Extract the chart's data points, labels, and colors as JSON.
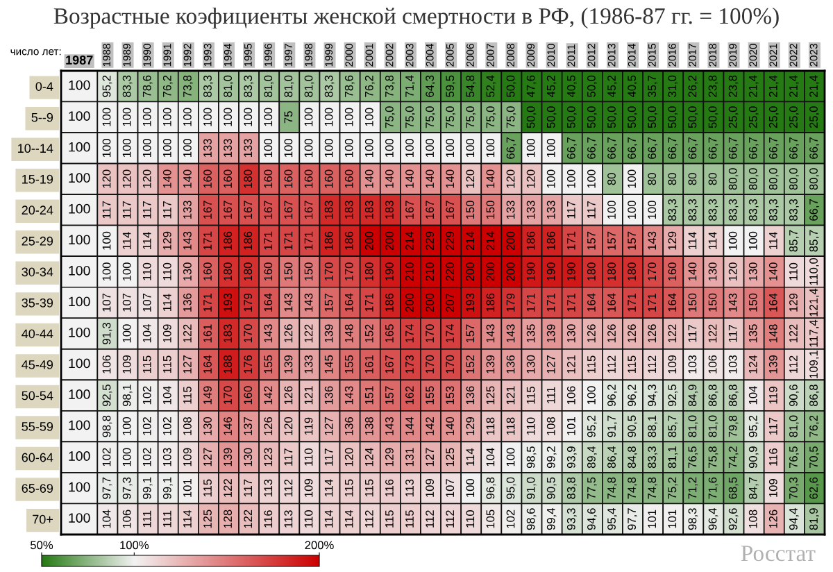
{
  "chart_data": {
    "type": "heatmap",
    "title": "Возрастные коэфициенты женской смертности в РФ, (1986-87 гг. = 100%)",
    "ylabel": "число лет:",
    "annotations": [
      "Росстат"
    ],
    "categories": [
      "1987",
      "1988",
      "1989",
      "1990",
      "1991",
      "1992",
      "1993",
      "1994",
      "1995",
      "1996",
      "1997",
      "1998",
      "1999",
      "2000",
      "2001",
      "2002",
      "2003",
      "2004",
      "2005",
      "2006",
      "2007",
      "2008",
      "2009",
      "2010",
      "2011",
      "2012",
      "2013",
      "2014",
      "2015",
      "2016",
      "2017",
      "2018",
      "2019",
      "2020",
      "2021",
      "2022",
      "2023"
    ],
    "y_categories": [
      "0-4",
      "5--9",
      "10--14",
      "15-19",
      "20-24",
      "25-29",
      "30-34",
      "35-39",
      "40-44",
      "45-49",
      "50-54",
      "55-59",
      "60-64",
      "65-69",
      "70+"
    ],
    "cells": [
      [
        100,
        95.2,
        83.3,
        78.6,
        76.2,
        73.8,
        83.3,
        81.0,
        83.3,
        81.0,
        81.0,
        81.0,
        83.3,
        78.6,
        76.2,
        73.8,
        71.4,
        64.3,
        59.5,
        54.8,
        52.4,
        50.0,
        47.6,
        45.2,
        40.5,
        50.0,
        45.2,
        40.5,
        35.7,
        31.0,
        26.2,
        23.8,
        23.8,
        21.4,
        21.4,
        21.4,
        21.4
      ],
      [
        100,
        100,
        100,
        100,
        100,
        100,
        100,
        100,
        100,
        100,
        75,
        100,
        100,
        100,
        100,
        75.0,
        75.0,
        75.0,
        75.0,
        75.0,
        75.0,
        75.0,
        50.0,
        50.0,
        50.0,
        50.0,
        50.0,
        50.0,
        50.0,
        50.0,
        50.0,
        50.0,
        25.0,
        25.0,
        25.0,
        25.0,
        25.0
      ],
      [
        100,
        100,
        100,
        100,
        100,
        100,
        133,
        133,
        133,
        100,
        100,
        100,
        100,
        100,
        100,
        100,
        100,
        100,
        100,
        100,
        100,
        66.7,
        100,
        100,
        66.7,
        66.7,
        66.7,
        66.7,
        66.7,
        66.7,
        66.7,
        66.7,
        66.7,
        66.7,
        66.7,
        66.7,
        66.7
      ],
      [
        100,
        120,
        120,
        120,
        140,
        140,
        160,
        160,
        180,
        160,
        160,
        160,
        160,
        160,
        140,
        140,
        140,
        140,
        140,
        120,
        140,
        120,
        120,
        100,
        100,
        100,
        80,
        100,
        80,
        80,
        80,
        80,
        80.0,
        80.0,
        80.0,
        80.0,
        80.0
      ],
      [
        100,
        117,
        117,
        117,
        117,
        133,
        167,
        167,
        167,
        167,
        167,
        167,
        183,
        183,
        183,
        183,
        167,
        167,
        167,
        150,
        150,
        133,
        133,
        133,
        117,
        117,
        100,
        100,
        100,
        83.3,
        83.3,
        83.3,
        83.3,
        83.3,
        83.3,
        83.3,
        66.7
      ],
      [
        100,
        100,
        114,
        114,
        129,
        143,
        171,
        186,
        186,
        171,
        171,
        171,
        186,
        186,
        200,
        200,
        214,
        229,
        229,
        214,
        214,
        200,
        186,
        186,
        171,
        157,
        157,
        157,
        143,
        129,
        114,
        114,
        100,
        100,
        114,
        85.7,
        85.7
      ],
      [
        100,
        100,
        100,
        110,
        110,
        130,
        160,
        180,
        180,
        160,
        150,
        150,
        170,
        170,
        180,
        190,
        210,
        210,
        220,
        200,
        200,
        200,
        190,
        190,
        190,
        180,
        180,
        180,
        170,
        160,
        140,
        130,
        120,
        130,
        140,
        110,
        110.0
      ],
      [
        100,
        107,
        107,
        107,
        114,
        136,
        171,
        193,
        179,
        164,
        143,
        143,
        157,
        164,
        171,
        186,
        200,
        200,
        207,
        193,
        186,
        179,
        171,
        171,
        171,
        164,
        164,
        171,
        171,
        164,
        150,
        150,
        143,
        150,
        164,
        129,
        121.4
      ],
      [
        100,
        91.3,
        100,
        104,
        109,
        122,
        161,
        183,
        170,
        143,
        126,
        122,
        139,
        148,
        152,
        165,
        174,
        170,
        174,
        157,
        143,
        143,
        135,
        139,
        130,
        126,
        126,
        126,
        126,
        122,
        117,
        122,
        117,
        135,
        148,
        122,
        117.4
      ],
      [
        100,
        106,
        109,
        115,
        115,
        127,
        164,
        188,
        176,
        155,
        139,
        133,
        145,
        155,
        161,
        167,
        173,
        170,
        170,
        152,
        139,
        136,
        130,
        127,
        121,
        115,
        112,
        115,
        112,
        109,
        103,
        106,
        103,
        124,
        139,
        112,
        109.1
      ],
      [
        100,
        92.5,
        98.1,
        102,
        104,
        115,
        149,
        170,
        160,
        142,
        126,
        121,
        136,
        143,
        151,
        157,
        162,
        155,
        153,
        136,
        125,
        121,
        115,
        111,
        106,
        100,
        96.2,
        96.2,
        94.3,
        92.5,
        84.9,
        86.8,
        86.8,
        104,
        119,
        90.6,
        86.8
      ],
      [
        100,
        98.8,
        100,
        102,
        102,
        108,
        130,
        146,
        137,
        126,
        120,
        119,
        127,
        136,
        138,
        143,
        144,
        142,
        140,
        129,
        118,
        118,
        110,
        108,
        101,
        95.2,
        91.7,
        90.5,
        88.1,
        85.7,
        81.0,
        81.0,
        79.8,
        95.2,
        117,
        81.0,
        76.2
      ],
      [
        100,
        102,
        100,
        102,
        103,
        109,
        127,
        139,
        130,
        123,
        117,
        110,
        117,
        120,
        124,
        129,
        131,
        127,
        125,
        114,
        104,
        100,
        98.5,
        99.2,
        93.9,
        89.4,
        86.4,
        84.8,
        83.3,
        81.1,
        76.5,
        75.8,
        74.2,
        90.9,
        116,
        76.5,
        70.5
      ],
      [
        100,
        97.7,
        97.3,
        99.1,
        99.1,
        101,
        115,
        122,
        117,
        113,
        112,
        109,
        114,
        115,
        115,
        116,
        113,
        109,
        107,
        100,
        96.8,
        95.0,
        91.0,
        90.5,
        83.8,
        77.5,
        74.8,
        74.8,
        74.8,
        75.2,
        71.2,
        71.6,
        68.5,
        84.7,
        109,
        70.3,
        62.6
      ],
      [
        100,
        104,
        106,
        111,
        111,
        114,
        125,
        128,
        122,
        116,
        113,
        110,
        114,
        114,
        112,
        115,
        115,
        112,
        112,
        110,
        105,
        102,
        98.6,
        99.4,
        93.3,
        94.6,
        95.4,
        97.7,
        101,
        101,
        98.3,
        96.4,
        92.6,
        108,
        126,
        94.4,
        81.9
      ]
    ],
    "cell_labels": [
      [
        "100",
        "95,2",
        "83,3",
        "78,6",
        "76,2",
        "73,8",
        "83,3",
        "81,0",
        "83,3",
        "81,0",
        "81,0",
        "81,0",
        "83,3",
        "78,6",
        "76,2",
        "73,8",
        "71,4",
        "64,3",
        "59,5",
        "54,8",
        "52,4",
        "50,0",
        "47,6",
        "45,2",
        "40,5",
        "50,0",
        "45,2",
        "40,5",
        "35,7",
        "31,0",
        "26,2",
        "23,8",
        "23,8",
        "21,4",
        "21,4",
        "21,4",
        "21,4"
      ],
      [
        "100",
        "100",
        "100",
        "100",
        "100",
        "100",
        "100",
        "100",
        "100",
        "100",
        "75",
        "100",
        "100",
        "100",
        "100",
        "75,0",
        "75,0",
        "75,0",
        "75,0",
        "75,0",
        "75,0",
        "75,0",
        "50,0",
        "50,0",
        "50,0",
        "50,0",
        "50,0",
        "50,0",
        "50,0",
        "50,0",
        "50,0",
        "50,0",
        "25,0",
        "25,0",
        "25,0",
        "25,0",
        "25,0"
      ],
      [
        "100",
        "100",
        "100",
        "100",
        "100",
        "100",
        "133",
        "133",
        "133",
        "100",
        "100",
        "100",
        "100",
        "100",
        "100",
        "100",
        "100",
        "100",
        "100",
        "100",
        "100",
        "66,7",
        "100",
        "100",
        "66,7",
        "66,7",
        "66,7",
        "66,7",
        "66,7",
        "66,7",
        "66,7",
        "66,7",
        "66,7",
        "66,7",
        "66,7",
        "66,7",
        "66,7"
      ],
      [
        "100",
        "120",
        "120",
        "120",
        "140",
        "140",
        "160",
        "160",
        "180",
        "160",
        "160",
        "160",
        "160",
        "160",
        "140",
        "140",
        "140",
        "140",
        "140",
        "120",
        "140",
        "120",
        "120",
        "100",
        "100",
        "100",
        "80",
        "100",
        "80",
        "80",
        "80",
        "80",
        "80,0",
        "80,0",
        "80,0",
        "80,0",
        "80,0"
      ],
      [
        "100",
        "117",
        "117",
        "117",
        "117",
        "133",
        "167",
        "167",
        "167",
        "167",
        "167",
        "167",
        "183",
        "183",
        "183",
        "183",
        "167",
        "167",
        "167",
        "150",
        "150",
        "133",
        "133",
        "133",
        "117",
        "117",
        "100",
        "100",
        "100",
        "83,3",
        "83,3",
        "83,3",
        "83,3",
        "83,3",
        "83,3",
        "83,3",
        "66,7"
      ],
      [
        "100",
        "100",
        "114",
        "114",
        "129",
        "143",
        "171",
        "186",
        "186",
        "171",
        "171",
        "171",
        "186",
        "186",
        "200",
        "200",
        "214",
        "229",
        "229",
        "214",
        "214",
        "200",
        "186",
        "186",
        "171",
        "157",
        "157",
        "157",
        "143",
        "129",
        "114",
        "114",
        "100",
        "100",
        "114",
        "85,7",
        "85,7"
      ],
      [
        "100",
        "100",
        "100",
        "110",
        "110",
        "130",
        "160",
        "180",
        "180",
        "160",
        "150",
        "150",
        "170",
        "170",
        "180",
        "190",
        "210",
        "210",
        "220",
        "200",
        "200",
        "200",
        "190",
        "190",
        "190",
        "180",
        "180",
        "180",
        "170",
        "160",
        "140",
        "130",
        "120",
        "130",
        "140",
        "110",
        "110,0"
      ],
      [
        "100",
        "107",
        "107",
        "107",
        "114",
        "136",
        "171",
        "193",
        "179",
        "164",
        "143",
        "143",
        "157",
        "164",
        "171",
        "186",
        "200",
        "200",
        "207",
        "193",
        "186",
        "179",
        "171",
        "171",
        "171",
        "164",
        "164",
        "171",
        "171",
        "164",
        "150",
        "150",
        "143",
        "150",
        "164",
        "129",
        "121,4"
      ],
      [
        "100",
        "91,3",
        "100",
        "104",
        "109",
        "122",
        "161",
        "183",
        "170",
        "143",
        "126",
        "122",
        "139",
        "148",
        "152",
        "165",
        "174",
        "170",
        "174",
        "157",
        "143",
        "143",
        "135",
        "139",
        "130",
        "126",
        "126",
        "126",
        "126",
        "122",
        "117",
        "122",
        "117",
        "135",
        "148",
        "122",
        "117,4"
      ],
      [
        "100",
        "106",
        "109",
        "115",
        "115",
        "127",
        "164",
        "188",
        "176",
        "155",
        "139",
        "133",
        "145",
        "155",
        "161",
        "167",
        "173",
        "170",
        "170",
        "152",
        "139",
        "136",
        "130",
        "127",
        "121",
        "115",
        "112",
        "115",
        "112",
        "109",
        "103",
        "106",
        "103",
        "124",
        "139",
        "112",
        "109,1"
      ],
      [
        "100",
        "92,5",
        "98,1",
        "102",
        "104",
        "115",
        "149",
        "170",
        "160",
        "142",
        "126",
        "121",
        "136",
        "143",
        "151",
        "157",
        "162",
        "155",
        "153",
        "136",
        "125",
        "121",
        "115",
        "111",
        "106",
        "100",
        "96,2",
        "96,2",
        "94,3",
        "92,5",
        "84,9",
        "86,8",
        "86,8",
        "104",
        "119",
        "90,6",
        "86,8"
      ],
      [
        "100",
        "98,8",
        "100",
        "102",
        "102",
        "108",
        "130",
        "146",
        "137",
        "126",
        "120",
        "119",
        "127",
        "136",
        "138",
        "143",
        "144",
        "142",
        "140",
        "129",
        "118",
        "118",
        "110",
        "108",
        "101",
        "95,2",
        "91,7",
        "90,5",
        "88,1",
        "85,7",
        "81,0",
        "81,0",
        "79,8",
        "95,2",
        "117",
        "81,0",
        "76,2"
      ],
      [
        "100",
        "102",
        "100",
        "102",
        "103",
        "109",
        "127",
        "139",
        "130",
        "123",
        "117",
        "110",
        "117",
        "120",
        "124",
        "129",
        "131",
        "127",
        "125",
        "114",
        "104",
        "100",
        "98,5",
        "99,2",
        "93,9",
        "89,4",
        "86,4",
        "84,8",
        "83,3",
        "81,1",
        "76,5",
        "75,8",
        "74,2",
        "90,9",
        "116",
        "76,5",
        "70,5"
      ],
      [
        "100",
        "97,7",
        "97,3",
        "99,1",
        "99,1",
        "101",
        "115",
        "122",
        "117",
        "113",
        "112",
        "109",
        "114",
        "115",
        "115",
        "116",
        "113",
        "109",
        "107",
        "100",
        "96,8",
        "95,0",
        "91,0",
        "90,5",
        "83,8",
        "77,5",
        "74,8",
        "74,8",
        "74,8",
        "75,2",
        "71,2",
        "71,6",
        "68,5",
        "84,7",
        "109",
        "70,3",
        "62,6"
      ],
      [
        "100",
        "104",
        "106",
        "111",
        "111",
        "114",
        "125",
        "128",
        "122",
        "116",
        "113",
        "110",
        "114",
        "114",
        "112",
        "115",
        "115",
        "112",
        "112",
        "110",
        "105",
        "102",
        "98,6",
        "99,4",
        "93,3",
        "94,6",
        "95,4",
        "97,7",
        "101",
        "101",
        "98,3",
        "96,4",
        "92,6",
        "108",
        "126",
        "94,4",
        "81,9"
      ]
    ],
    "cticks": [
      {
        "value": 50,
        "label": "50%"
      },
      {
        "value": 100,
        "label": "100%"
      },
      {
        "value": 200,
        "label": "200%"
      }
    ],
    "colors": [
      "#267a14",
      "#f2f2f2",
      "#cc0000"
    ]
  }
}
